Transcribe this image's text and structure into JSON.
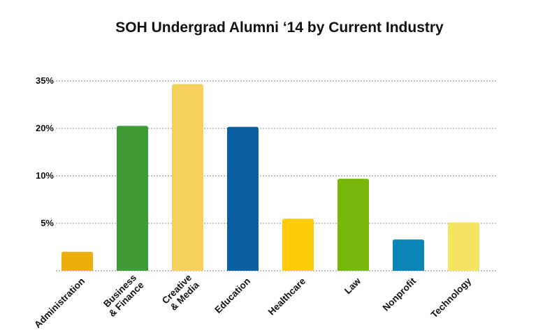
{
  "chart_data": {
    "type": "bar",
    "title": "SOH Undergrad Alumni ‘14 by Current Industry",
    "xlabel": "",
    "ylabel": "",
    "categories": [
      [
        "Administration"
      ],
      [
        "Business",
        "& Finance"
      ],
      [
        "Creative",
        "& Media"
      ],
      [
        "Education"
      ],
      [
        "Healthcare"
      ],
      [
        "Law"
      ],
      [
        "Nonprofit"
      ],
      [
        "Technology"
      ]
    ],
    "values": [
      2,
      20.8,
      34,
      20.5,
      5.5,
      9.7,
      3.3,
      5.1
    ],
    "colors": [
      "#EEAE0A",
      "#3F9B37",
      "#F5D05A",
      "#0B5FA3",
      "#FDCB0A",
      "#77B70A",
      "#0A86B8",
      "#F5E562"
    ],
    "ytick_labels": [
      "35%",
      "20%",
      "10%",
      "5%"
    ],
    "ytick_values": [
      35,
      20,
      10,
      5
    ],
    "grid": true
  }
}
